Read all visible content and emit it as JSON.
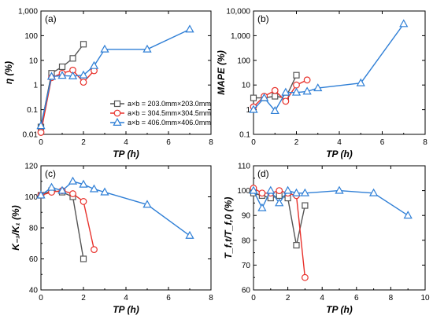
{
  "chart_data": [
    {
      "panel": "(a)",
      "type": "line",
      "xlabel": "TP (h)",
      "ylabel": "η (%)",
      "xlim": [
        0,
        8
      ],
      "ylim": [
        0.01,
        1000
      ],
      "y_scale": "log",
      "x_ticks": [
        0,
        2,
        4,
        6,
        8
      ],
      "y_ticks": [
        0.01,
        0.1,
        1,
        10,
        100,
        1000
      ],
      "y_tick_labels": [
        "0.01",
        "0.1",
        "1",
        "10",
        "100",
        "1,000"
      ],
      "legend": {
        "position": "center-left",
        "entries": [
          "a×b = 203.0mm×203.0mm",
          "a×b = 304.5mm×304.5mm",
          "a×b = 406.0mm×406.0mm"
        ]
      },
      "series": [
        {
          "name": "a×b = 203.0mm×203.0mm",
          "color": "#555555",
          "marker": "square",
          "x": [
            0,
            0.5,
            1,
            1.5,
            2
          ],
          "y": [
            0.02,
            3.0,
            5.5,
            12,
            45
          ]
        },
        {
          "name": "a×b = 304.5mm×304.5mm",
          "color": "#e8312b",
          "marker": "circle",
          "x": [
            0,
            0.5,
            1,
            1.5,
            2,
            2.5
          ],
          "y": [
            0.012,
            2.0,
            3.0,
            4.0,
            1.3,
            3.8
          ]
        },
        {
          "name": "a×b = 406.0mm×406.0mm",
          "color": "#2f7fd6",
          "marker": "triangle",
          "x": [
            0,
            0.5,
            1,
            1.5,
            2,
            2.5,
            3,
            5,
            7
          ],
          "y": [
            0.022,
            2.2,
            2.4,
            2.3,
            2.5,
            6,
            28,
            28,
            180
          ]
        }
      ]
    },
    {
      "panel": "(b)",
      "type": "line",
      "xlabel": "TP (h)",
      "ylabel": "MAPE (%)",
      "xlim": [
        0,
        8
      ],
      "ylim": [
        0.1,
        10000
      ],
      "y_scale": "log",
      "x_ticks": [
        0,
        2,
        4,
        6,
        8
      ],
      "y_ticks": [
        0.1,
        1,
        10,
        100,
        1000,
        10000
      ],
      "y_tick_labels": [
        "0.1",
        "1",
        "10",
        "100",
        "1,000",
        "10,000"
      ],
      "series": [
        {
          "name": "a×b = 203.0mm×203.0mm",
          "color": "#555555",
          "marker": "square",
          "x": [
            0,
            0.5,
            1,
            1.5,
            2
          ],
          "y": [
            3.0,
            3.0,
            3.5,
            3.0,
            25
          ]
        },
        {
          "name": "a×b = 304.5mm×304.5mm",
          "color": "#e8312b",
          "marker": "circle",
          "x": [
            0,
            0.5,
            1,
            1.5,
            2,
            2.5
          ],
          "y": [
            1.3,
            3.5,
            6.0,
            2.2,
            10,
            16
          ]
        },
        {
          "name": "a×b = 406.0mm×406.0mm",
          "color": "#2f7fd6",
          "marker": "triangle",
          "x": [
            0,
            0.5,
            1,
            1.5,
            2,
            2.5,
            3,
            5,
            7
          ],
          "y": [
            1.0,
            3.0,
            0.9,
            5.0,
            5.0,
            5.5,
            7.5,
            12,
            3000
          ]
        }
      ]
    },
    {
      "panel": "(c)",
      "type": "line",
      "xlabel": "TP (h)",
      "ylabel": "K₋₁/K₁ (%)",
      "xlim": [
        0,
        8
      ],
      "ylim": [
        40,
        120
      ],
      "x_ticks": [
        0,
        2,
        4,
        6,
        8
      ],
      "y_ticks": [
        40,
        60,
        80,
        100,
        120
      ],
      "series": [
        {
          "name": "a×b = 203.0mm×203.0mm",
          "color": "#555555",
          "marker": "square",
          "x": [
            0,
            0.5,
            1,
            1.5,
            2
          ],
          "y": [
            101,
            104,
            103,
            100,
            60
          ]
        },
        {
          "name": "a×b = 304.5mm×304.5mm",
          "color": "#e8312b",
          "marker": "circle",
          "x": [
            0,
            0.5,
            1,
            1.5,
            2,
            2.5
          ],
          "y": [
            101,
            103,
            104,
            102,
            97,
            66
          ]
        },
        {
          "name": "a×b = 406.0mm×406.0mm",
          "color": "#2f7fd6",
          "marker": "triangle",
          "x": [
            0,
            0.5,
            1,
            1.5,
            2,
            2.5,
            3,
            5,
            7
          ],
          "y": [
            101,
            106,
            104,
            110,
            108,
            105,
            103,
            95,
            75
          ]
        }
      ]
    },
    {
      "panel": "(d)",
      "type": "line",
      "xlabel": "TP (h)",
      "ylabel": "T_f,t/T_f,0 (%)",
      "xlim": [
        0,
        10
      ],
      "ylim": [
        60,
        110
      ],
      "x_ticks": [
        0,
        2,
        4,
        6,
        8,
        10
      ],
      "y_ticks": [
        60,
        70,
        80,
        90,
        100,
        110
      ],
      "series": [
        {
          "name": "a×b = 203.0mm×203.0mm",
          "color": "#555555",
          "marker": "square",
          "x": [
            0,
            0.5,
            1,
            1.5,
            2,
            2.5,
            3
          ],
          "y": [
            99,
            98,
            97,
            98,
            97,
            78,
            94
          ]
        },
        {
          "name": "a×b = 304.5mm×304.5mm",
          "color": "#e8312b",
          "marker": "circle",
          "x": [
            0,
            0.5,
            1,
            1.5,
            2,
            2.5,
            3
          ],
          "y": [
            101,
            99,
            99,
            100,
            99,
            98,
            65
          ]
        },
        {
          "name": "a×b = 406.0mm×406.0mm",
          "color": "#2f7fd6",
          "marker": "triangle",
          "x": [
            0,
            0.5,
            1,
            1.5,
            2,
            2.5,
            3,
            5,
            7,
            9
          ],
          "y": [
            100,
            93,
            100,
            95,
            100,
            99,
            99,
            100,
            99,
            90
          ]
        }
      ]
    }
  ]
}
